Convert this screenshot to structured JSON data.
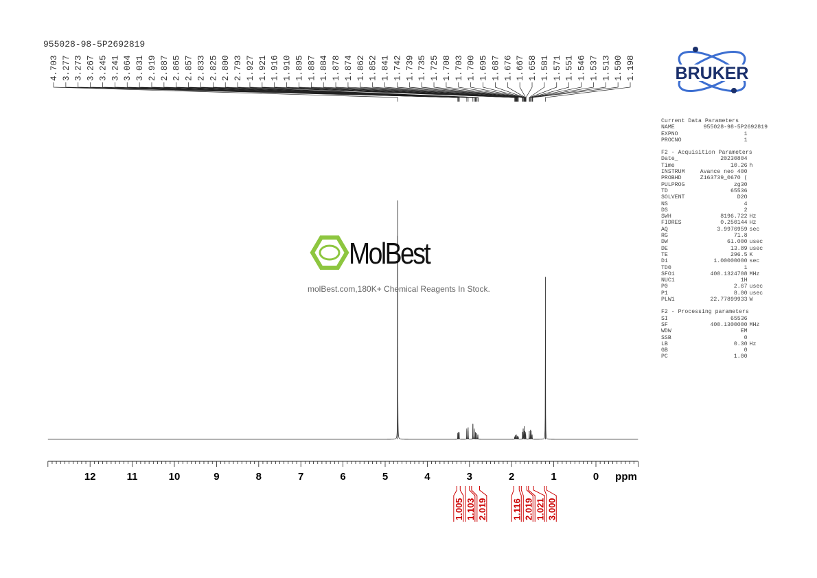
{
  "sample_name": "955028-98-5P2692819",
  "chart_data": {
    "type": "line",
    "xlabel": "ppm",
    "xlim": [
      13.0,
      -1.0
    ],
    "x_reversed": true,
    "grid": false,
    "x_ticks": [
      12,
      11,
      10,
      9,
      8,
      7,
      6,
      5,
      4,
      3,
      2,
      1,
      0
    ],
    "peak_labels": [
      4.703,
      3.277,
      3.273,
      3.267,
      3.245,
      3.241,
      3.064,
      3.031,
      2.919,
      2.887,
      2.865,
      2.857,
      2.833,
      2.825,
      2.8,
      2.793,
      1.927,
      1.921,
      1.916,
      1.91,
      1.895,
      1.887,
      1.884,
      1.878,
      1.874,
      1.862,
      1.852,
      1.841,
      1.742,
      1.739,
      1.735,
      1.725,
      1.708,
      1.703,
      1.7,
      1.695,
      1.687,
      1.676,
      1.667,
      1.658,
      1.581,
      1.571,
      1.551,
      1.546,
      1.537,
      1.513,
      1.5,
      1.198
    ],
    "peaks": [
      {
        "ppm": 4.703,
        "intensity": 1.0
      },
      {
        "ppm": 3.277,
        "intensity": 0.025
      },
      {
        "ppm": 3.267,
        "intensity": 0.03
      },
      {
        "ppm": 3.245,
        "intensity": 0.03
      },
      {
        "ppm": 3.064,
        "intensity": 0.045
      },
      {
        "ppm": 3.031,
        "intensity": 0.05
      },
      {
        "ppm": 2.919,
        "intensity": 0.065
      },
      {
        "ppm": 2.887,
        "intensity": 0.045
      },
      {
        "ppm": 2.857,
        "intensity": 0.03
      },
      {
        "ppm": 2.825,
        "intensity": 0.025
      },
      {
        "ppm": 2.8,
        "intensity": 0.02
      },
      {
        "ppm": 1.927,
        "intensity": 0.012
      },
      {
        "ppm": 1.91,
        "intensity": 0.018
      },
      {
        "ppm": 1.887,
        "intensity": 0.02
      },
      {
        "ppm": 1.862,
        "intensity": 0.015
      },
      {
        "ppm": 1.841,
        "intensity": 0.012
      },
      {
        "ppm": 1.742,
        "intensity": 0.03
      },
      {
        "ppm": 1.725,
        "intensity": 0.045
      },
      {
        "ppm": 1.703,
        "intensity": 0.055
      },
      {
        "ppm": 1.687,
        "intensity": 0.035
      },
      {
        "ppm": 1.667,
        "intensity": 0.03
      },
      {
        "ppm": 1.581,
        "intensity": 0.035
      },
      {
        "ppm": 1.551,
        "intensity": 0.04
      },
      {
        "ppm": 1.537,
        "intensity": 0.035
      },
      {
        "ppm": 1.513,
        "intensity": 0.02
      },
      {
        "ppm": 1.198,
        "intensity": 0.68
      }
    ],
    "integrals": [
      {
        "from": 3.3,
        "to": 3.22,
        "value": "1.005"
      },
      {
        "from": 3.1,
        "to": 3.0,
        "value": "1.103"
      },
      {
        "from": 2.95,
        "to": 2.76,
        "value": "2.019"
      },
      {
        "from": 1.95,
        "to": 1.82,
        "value": "1.116"
      },
      {
        "from": 1.77,
        "to": 1.64,
        "value": "2.019"
      },
      {
        "from": 1.6,
        "to": 1.48,
        "value": "1.021"
      },
      {
        "from": 1.22,
        "to": 1.17,
        "value": "3.000"
      }
    ],
    "spectrum_color": "#333333",
    "integral_color": "#cc0000"
  },
  "watermark": {
    "brand": "MolBest",
    "tagline": "molBest.com,180K+ Chemical Reagents In Stock."
  },
  "logo": {
    "text": "BRUKER",
    "color": "#1a2f6b",
    "accent": "#3d6fd1"
  },
  "parameters": {
    "current": {
      "title": "Current Data Parameters",
      "rows": [
        [
          "NAME",
          "955028-98-5P2692819",
          ""
        ],
        [
          "EXPNO",
          "1",
          ""
        ],
        [
          "PROCNO",
          "1",
          ""
        ]
      ]
    },
    "acquisition": {
      "title": "F2 - Acquisition Parameters",
      "rows": [
        [
          "Date_",
          "20230804",
          ""
        ],
        [
          "Time",
          "10.26",
          "h"
        ],
        [
          "INSTRUM",
          "Avance neo 400",
          ""
        ],
        [
          "PROBHD",
          "Z163739_0670 (",
          ""
        ],
        [
          "PULPROG",
          "zg30",
          ""
        ],
        [
          "TD",
          "65536",
          ""
        ],
        [
          "SOLVENT",
          "D2O",
          ""
        ],
        [
          "NS",
          "4",
          ""
        ],
        [
          "DS",
          "2",
          ""
        ],
        [
          "SWH",
          "8196.722",
          "Hz"
        ],
        [
          "FIDRES",
          "0.250144",
          "Hz"
        ],
        [
          "AQ",
          "3.9976959",
          "sec"
        ],
        [
          "RG",
          "71.8",
          ""
        ],
        [
          "DW",
          "61.000",
          "usec"
        ],
        [
          "DE",
          "13.89",
          "usec"
        ],
        [
          "TE",
          "296.5",
          "K"
        ],
        [
          "D1",
          "1.00000000",
          "sec"
        ],
        [
          "TD0",
          "1",
          ""
        ],
        [
          "SFO1",
          "400.1324708",
          "MHz"
        ],
        [
          "NUC1",
          "1H",
          ""
        ],
        [
          "P0",
          "2.67",
          "usec"
        ],
        [
          "P1",
          "8.00",
          "usec"
        ],
        [
          "PLW1",
          "22.77899933",
          "W"
        ]
      ]
    },
    "processing": {
      "title": "F2 - Processing parameters",
      "rows": [
        [
          "SI",
          "65536",
          ""
        ],
        [
          "SF",
          "400.1300000",
          "MHz"
        ],
        [
          "WDW",
          "EM",
          ""
        ],
        [
          "SSB",
          "0",
          ""
        ],
        [
          "LB",
          "0.30",
          "Hz"
        ],
        [
          "GB",
          "0",
          ""
        ],
        [
          "PC",
          "1.00",
          ""
        ]
      ]
    }
  }
}
